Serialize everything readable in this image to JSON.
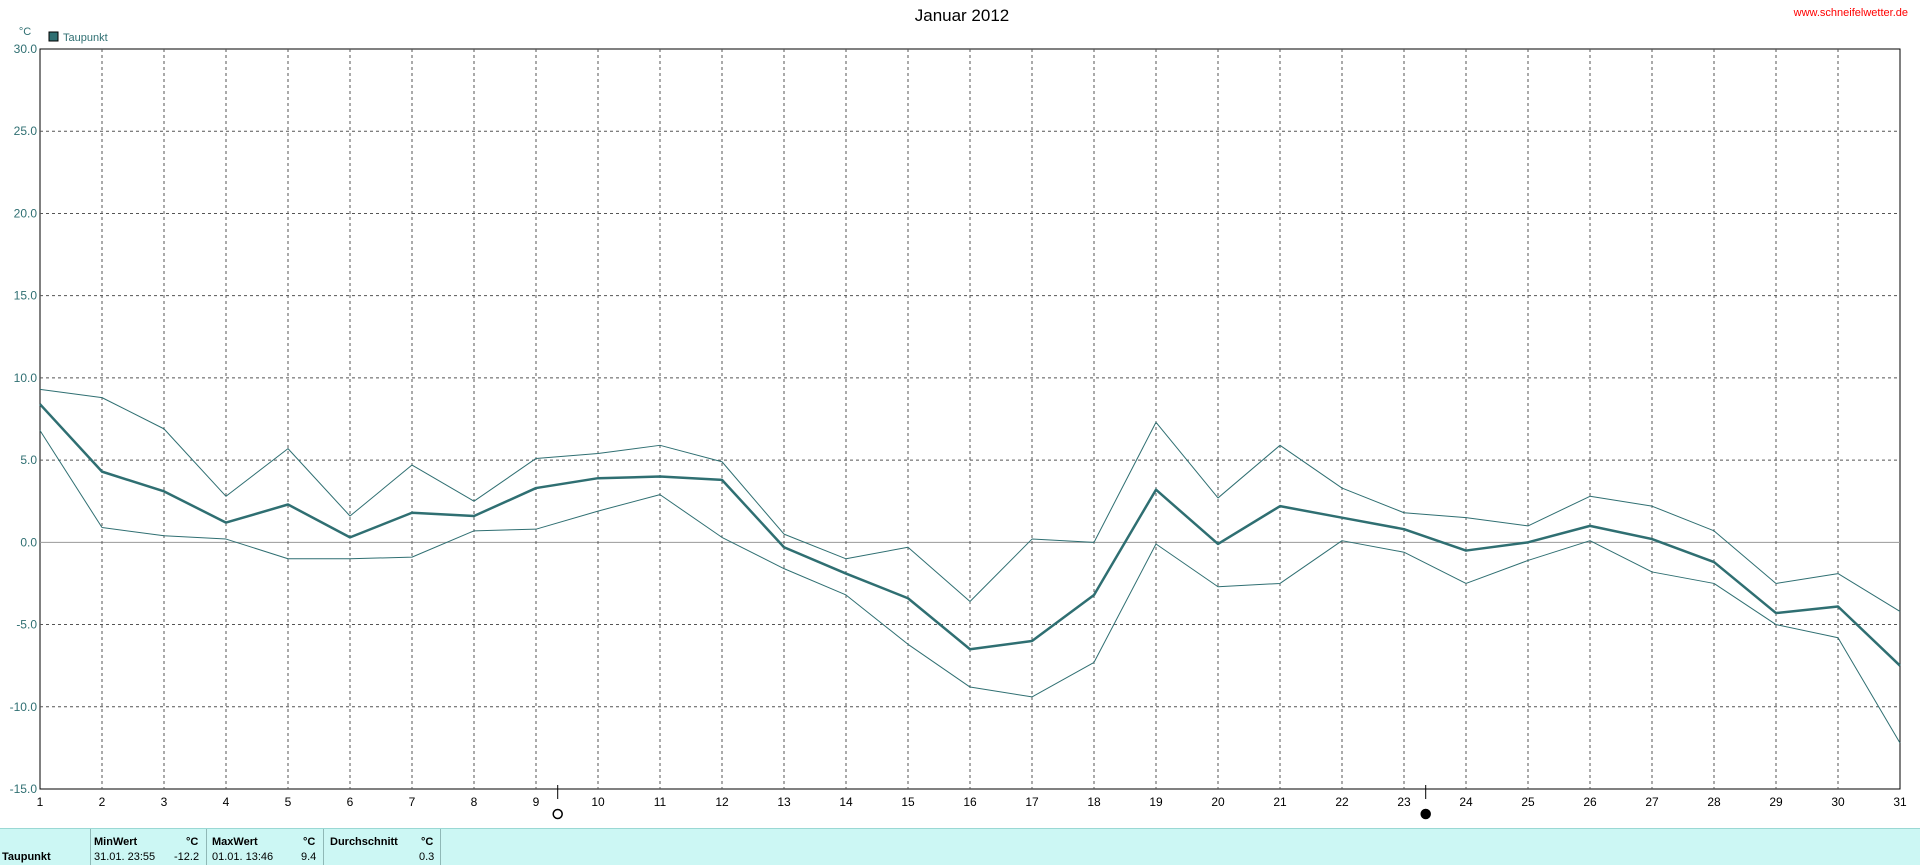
{
  "source": "www.schneifelwetter.de",
  "colors": {
    "series": "#2f6f72",
    "grid": "#555555",
    "zero": "#999999",
    "axis_text": "#2f6f72",
    "source": "#ff0000"
  },
  "chart_data": {
    "type": "line",
    "title": "Januar 2012",
    "ylabel": "°C",
    "xlabel": "",
    "ylim": [
      -15,
      30
    ],
    "xlim": [
      1,
      31
    ],
    "y_ticks": [
      "30.0",
      "25.0",
      "20.0",
      "15.0",
      "10.0",
      "5.0",
      "0.0",
      "-5.0",
      "-10.0",
      "-15.0"
    ],
    "x": [
      1,
      2,
      3,
      4,
      5,
      6,
      7,
      8,
      9,
      10,
      11,
      12,
      13,
      14,
      15,
      16,
      17,
      18,
      19,
      20,
      21,
      22,
      23,
      24,
      25,
      26,
      27,
      28,
      29,
      30,
      31
    ],
    "legend": {
      "label": "Taupunkt",
      "position": "top-left"
    },
    "grid": true,
    "moon_markers": [
      {
        "x": 9.35,
        "phase": "full-moon-icon"
      },
      {
        "x": 23.35,
        "phase": "new-moon-icon"
      }
    ],
    "series": [
      {
        "name": "Taupunkt",
        "role": "mean",
        "values": [
          8.4,
          4.3,
          3.1,
          1.2,
          2.3,
          0.3,
          1.8,
          1.6,
          3.3,
          3.9,
          4.0,
          3.8,
          -0.3,
          -1.9,
          -3.4,
          -6.5,
          -6.0,
          -3.2,
          3.2,
          -0.1,
          2.2,
          1.5,
          0.8,
          -0.5,
          0.0,
          1.0,
          0.2,
          -1.2,
          -4.3,
          -3.9,
          -7.5
        ]
      },
      {
        "role": "max",
        "values": [
          9.3,
          8.8,
          6.9,
          2.8,
          5.7,
          1.6,
          4.7,
          2.5,
          5.1,
          5.4,
          5.9,
          4.9,
          0.5,
          -1.0,
          -0.3,
          -3.6,
          0.2,
          0.0,
          7.3,
          2.7,
          5.9,
          3.3,
          1.8,
          1.5,
          1.0,
          2.8,
          2.2,
          0.7,
          -2.5,
          -1.9,
          -4.2
        ]
      },
      {
        "role": "min",
        "values": [
          6.8,
          0.9,
          0.4,
          0.2,
          -1.0,
          -1.0,
          -0.9,
          0.7,
          0.8,
          1.9,
          2.9,
          0.3,
          -1.6,
          -3.2,
          -6.2,
          -8.8,
          -9.4,
          -7.3,
          -0.1,
          -2.7,
          -2.5,
          0.1,
          -0.6,
          -2.5,
          -1.1,
          0.1,
          -1.8,
          -2.5,
          -5.0,
          -5.8,
          -12.2
        ]
      }
    ]
  },
  "footer": {
    "row_label": "Taupunkt",
    "min": {
      "header": "MinWert",
      "unit": "°C",
      "time": "31.01.  23:55",
      "value": "-12.2"
    },
    "max": {
      "header": "MaxWert",
      "unit": "°C",
      "time": "01.01.  13:46",
      "value": "9.4"
    },
    "avg": {
      "header": "Durchschnitt",
      "unit": "°C",
      "value": "0.3"
    }
  }
}
